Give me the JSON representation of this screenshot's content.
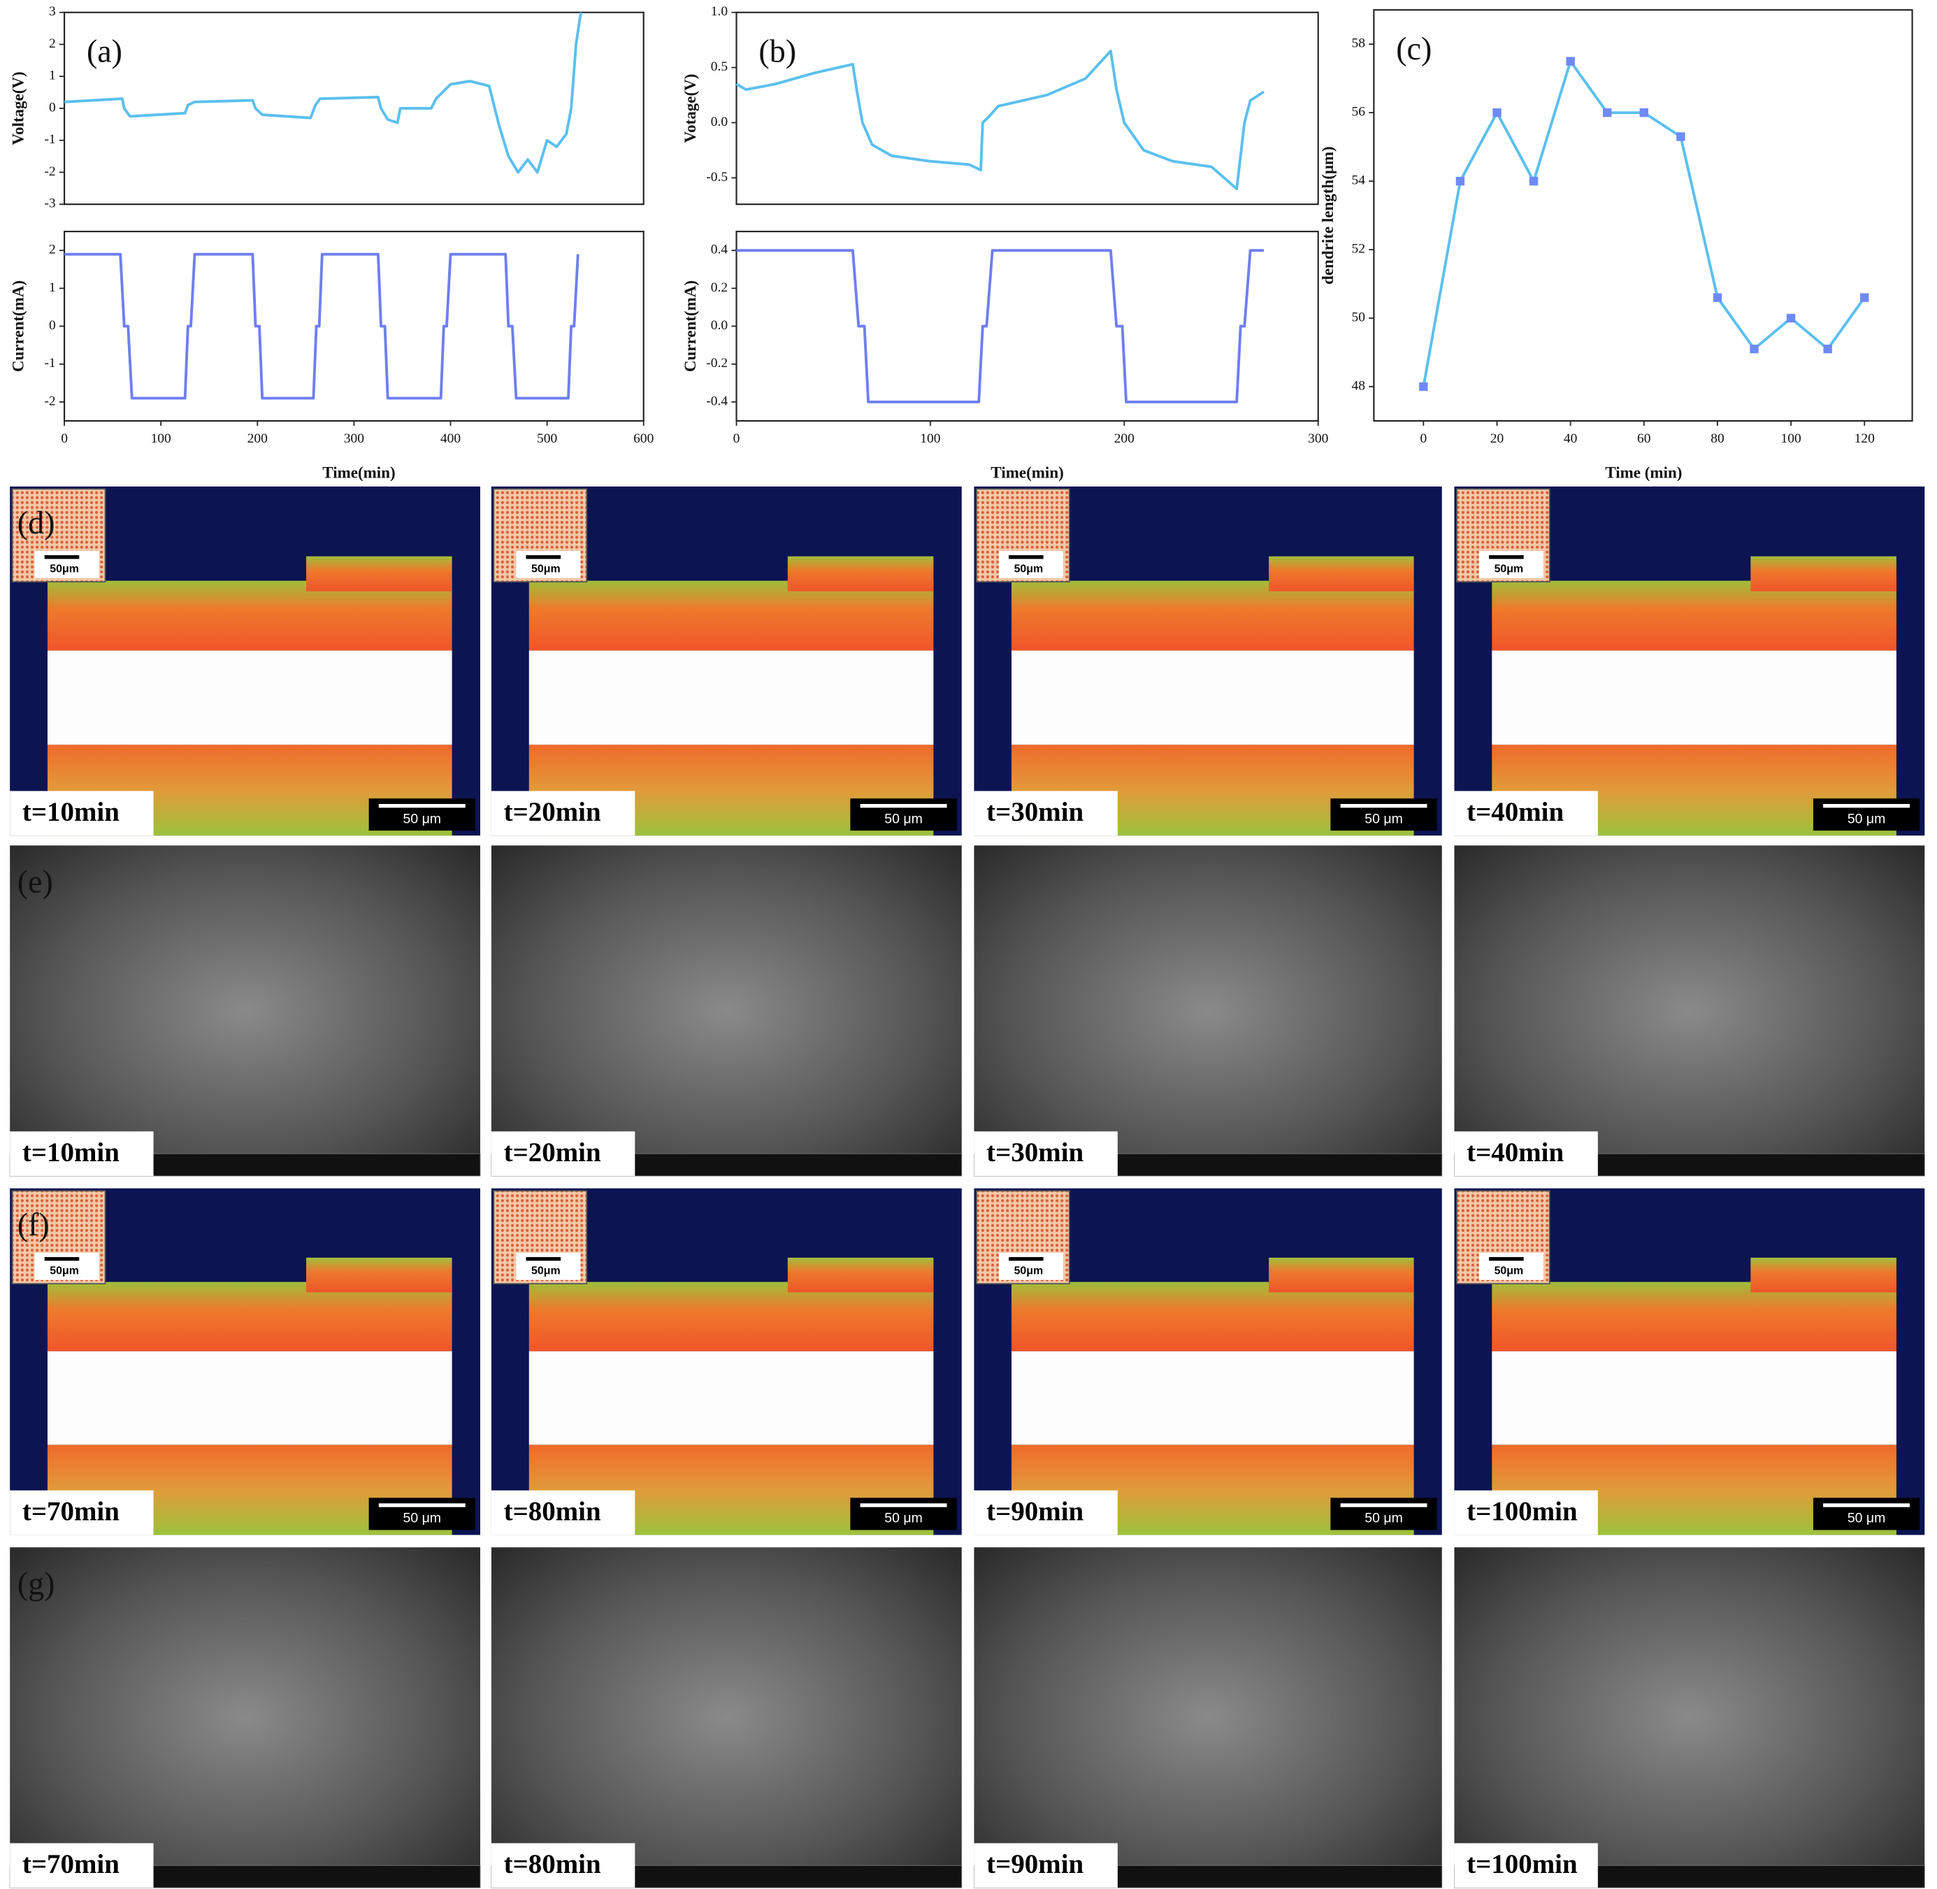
{
  "chart_data": [
    {
      "type": "line",
      "label": "(a)",
      "ylabel": "Voltage(V)",
      "color": "#5bc0ee",
      "x": [
        0,
        60,
        62,
        68,
        125,
        128,
        135,
        195,
        198,
        205,
        255,
        260,
        265,
        325,
        328,
        335,
        345,
        348,
        380,
        385,
        400,
        420,
        440,
        450,
        460,
        470,
        480,
        490,
        500,
        510,
        520,
        525,
        530,
        535
      ],
      "values": [
        0.2,
        0.3,
        0,
        -0.25,
        -0.15,
        0.1,
        0.2,
        0.25,
        0,
        -0.2,
        -0.3,
        0.1,
        0.3,
        0.35,
        0,
        -0.35,
        -0.45,
        0,
        0,
        0.3,
        0.75,
        0.85,
        0.7,
        -0.5,
        -1.5,
        -2.0,
        -1.6,
        -2.0,
        -1.0,
        -1.2,
        -0.8,
        0,
        2,
        3
      ],
      "xlim": [
        0,
        600
      ],
      "ylim": [
        -3,
        3
      ],
      "yticks": [
        -3,
        -2,
        -1,
        0,
        1,
        2,
        3
      ]
    },
    {
      "type": "line",
      "ylabel": "Current(mA)",
      "xlabel": "Time(min)",
      "color": "#6f7ff0",
      "x": [
        0,
        58,
        62,
        66,
        70,
        125,
        128,
        131,
        135,
        195,
        198,
        202,
        205,
        258,
        261,
        264,
        267,
        325,
        328,
        332,
        335,
        390,
        393,
        396,
        400,
        457,
        460,
        464,
        468,
        522,
        525,
        528,
        532
      ],
      "values": [
        1.9,
        1.9,
        0,
        0,
        -1.9,
        -1.9,
        0,
        0,
        1.9,
        1.9,
        0,
        0,
        -1.9,
        -1.9,
        0,
        0,
        1.9,
        1.9,
        0,
        0,
        -1.9,
        -1.9,
        0,
        0,
        1.9,
        1.9,
        0,
        0,
        -1.9,
        -1.9,
        0,
        0,
        1.9
      ],
      "xlim": [
        0,
        600
      ],
      "ylim": [
        -2.5,
        2.5
      ],
      "yticks": [
        -2,
        -1,
        0,
        1,
        2
      ],
      "xticks": [
        0,
        100,
        200,
        300,
        400,
        500,
        600
      ]
    },
    {
      "type": "line",
      "label": "(b)",
      "ylabel": "Votage(V)",
      "color": "#5bc0ee",
      "x": [
        0,
        5,
        20,
        40,
        60,
        62,
        65,
        70,
        80,
        100,
        120,
        126,
        127,
        130,
        135,
        160,
        180,
        193,
        196,
        200,
        210,
        225,
        245,
        258,
        260,
        262,
        265,
        272
      ],
      "values": [
        0.35,
        0.3,
        0.35,
        0.45,
        0.53,
        0.3,
        0,
        -0.2,
        -0.3,
        -0.35,
        -0.38,
        -0.43,
        0,
        0.05,
        0.15,
        0.25,
        0.4,
        0.65,
        0.3,
        0,
        -0.25,
        -0.35,
        -0.4,
        -0.6,
        -0.3,
        0,
        0.2,
        0.28
      ],
      "xlim": [
        0,
        300
      ],
      "ylim": [
        -0.74,
        1.0
      ],
      "yticks": [
        -0.5,
        {
          "value": 0,
          "label": "0.0"
        },
        0.5,
        {
          "value": 1,
          "label": "1.0"
        }
      ]
    },
    {
      "type": "line",
      "ylabel": "Current(mA)",
      "xlabel": "Time(min)",
      "color": "#6f7ff0",
      "x": [
        0,
        60,
        63,
        66,
        68,
        125,
        127,
        129,
        132,
        193,
        196,
        199,
        201,
        258,
        260,
        262,
        265,
        272
      ],
      "values": [
        0.4,
        0.4,
        0,
        0,
        -0.4,
        -0.4,
        0,
        0,
        0.4,
        0.4,
        0,
        0,
        -0.4,
        -0.4,
        0,
        0,
        0.4,
        0.4
      ],
      "xlim": [
        0,
        300
      ],
      "ylim": [
        -0.5,
        0.5
      ],
      "yticks": [
        -0.4,
        -0.2,
        {
          "value": 0,
          "label": "0.0"
        },
        0.2,
        0.4
      ],
      "xticks": [
        0,
        100,
        200,
        300
      ]
    },
    {
      "type": "line",
      "label": "(c)",
      "ylabel": "dendrite length(μm)",
      "xlabel": "Time (min)",
      "color": "#5bc0ee",
      "marker": "square",
      "marker_color": "#6f8af5",
      "x": [
        0,
        10,
        20,
        30,
        40,
        50,
        60,
        70,
        80,
        90,
        100,
        110,
        120
      ],
      "values": [
        48,
        54,
        56,
        54,
        57.5,
        56,
        56,
        55.3,
        50.6,
        49.1,
        50,
        49.1,
        50.6
      ],
      "xlim": [
        -13.5,
        133
      ],
      "ylim": [
        47,
        59
      ],
      "yticks": [
        48,
        50,
        52,
        54,
        56,
        58
      ],
      "xticks": [
        0,
        20,
        40,
        60,
        80,
        100,
        120
      ]
    }
  ],
  "panels": [
    {
      "label": "(d)",
      "images": [
        {
          "time": "t=10min",
          "scale": "50 μm",
          "inset_scale": "50μm"
        },
        {
          "time": "t=20min",
          "scale": "50 μm",
          "inset_scale": "50μm"
        },
        {
          "time": "t=30min",
          "scale": "50 μm",
          "inset_scale": "50μm"
        },
        {
          "time": "t=40min",
          "scale": "50 μm",
          "inset_scale": "50μm"
        }
      ]
    },
    {
      "label": "(e)",
      "images": [
        {
          "time": "t=10min"
        },
        {
          "time": "t=20min"
        },
        {
          "time": "t=30min"
        },
        {
          "time": "t=40min"
        }
      ]
    },
    {
      "label": "(f)",
      "images": [
        {
          "time": "t=70min",
          "scale": "50 μm",
          "inset_scale": "50μm"
        },
        {
          "time": "t=80min",
          "scale": "50 μm",
          "inset_scale": "50μm"
        },
        {
          "time": "t=90min",
          "scale": "50 μm",
          "inset_scale": "50μm"
        },
        {
          "time": "t=100min",
          "scale": "50 μm",
          "inset_scale": "50μm"
        }
      ]
    },
    {
      "label": "(g)",
      "images": [
        {
          "time": "t=70min"
        },
        {
          "time": "t=80min"
        },
        {
          "time": "t=90min"
        },
        {
          "time": "t=100min"
        }
      ]
    }
  ]
}
